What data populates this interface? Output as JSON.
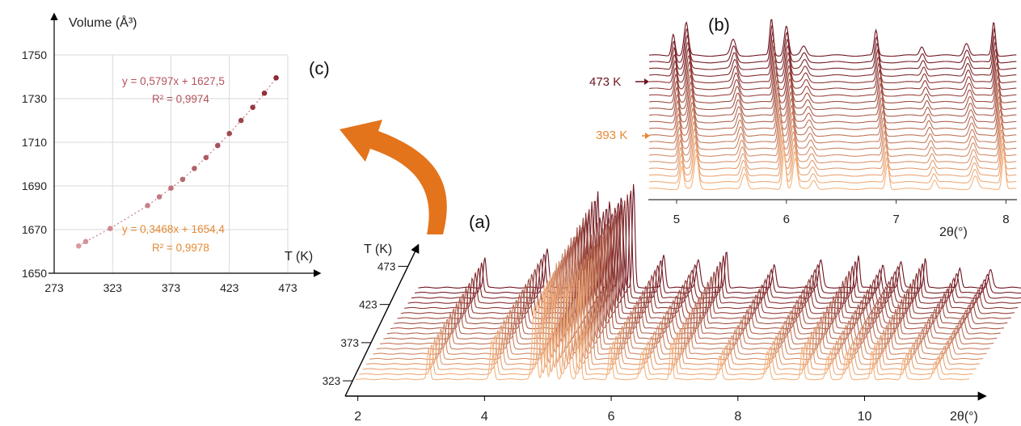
{
  "panel_labels": {
    "a": "(a)",
    "b": "(b)",
    "c": "(c)"
  },
  "colors": {
    "hot": "#6e1420",
    "cold": "#f5b47f",
    "arrow": "#e3741c",
    "fit_high": "#b3515b",
    "fit_low": "#e58a34",
    "grid": "#d9d9d9"
  },
  "chart_data": [
    {
      "id": "c",
      "type": "scatter",
      "ylabel": "Volume (Å³)",
      "xlabel": "T (K)",
      "xlim": [
        273,
        473
      ],
      "ylim": [
        1650,
        1750
      ],
      "x_ticks": [
        "273",
        "323",
        "373",
        "423",
        "473"
      ],
      "y_ticks": [
        "1650",
        "1670",
        "1690",
        "1710",
        "1730",
        "1750"
      ],
      "grid": true,
      "points": [
        [
          294,
          1662.5
        ],
        [
          300,
          1664.5
        ],
        [
          321,
          1670.5
        ],
        [
          353,
          1681
        ],
        [
          363,
          1685
        ],
        [
          373,
          1689
        ],
        [
          383,
          1693
        ],
        [
          393,
          1698
        ],
        [
          403,
          1703
        ],
        [
          413,
          1708.5
        ],
        [
          423,
          1714
        ],
        [
          433,
          1720
        ],
        [
          443,
          1726
        ],
        [
          453,
          1732.5
        ],
        [
          463,
          1739.5
        ]
      ],
      "fits": [
        {
          "equation": "y = 0,5797x + 1627,5",
          "r2": "R² = 0,9974"
        },
        {
          "equation": "y = 0,3468x + 1654,4",
          "r2": "R² = 0,9978"
        }
      ]
    },
    {
      "id": "a",
      "type": "line",
      "xlabel": "2θ(°)",
      "zlabel": "T (K)",
      "x_ticks": [
        "2",
        "4",
        "6",
        "8",
        "10"
      ],
      "z_ticks": [
        "323",
        "373",
        "423",
        "473"
      ],
      "xlim": [
        1.8,
        11.5
      ],
      "zlim": [
        303,
        483
      ],
      "series_count": 19,
      "peaks": [
        {
          "pos": 2.95,
          "h": 75
        },
        {
          "pos": 3.95,
          "h": 80
        },
        {
          "pos": 4.62,
          "h": 180
        },
        {
          "pos": 4.78,
          "h": 200
        },
        {
          "pos": 4.92,
          "h": 210
        },
        {
          "pos": 5.12,
          "h": 190
        },
        {
          "pos": 5.33,
          "h": 250
        },
        {
          "pos": 5.82,
          "h": 70
        },
        {
          "pos": 6.32,
          "h": 65
        },
        {
          "pos": 6.78,
          "h": 80
        },
        {
          "pos": 7.55,
          "h": 55
        },
        {
          "pos": 8.3,
          "h": 60
        },
        {
          "pos": 8.85,
          "h": 75
        },
        {
          "pos": 9.25,
          "h": 50
        },
        {
          "pos": 9.55,
          "h": 60
        },
        {
          "pos": 9.95,
          "h": 65
        },
        {
          "pos": 10.45,
          "h": 45
        },
        {
          "pos": 10.95,
          "h": 40
        }
      ]
    },
    {
      "id": "b",
      "type": "line",
      "xlabel": "2θ(°)",
      "x_ticks": [
        "5",
        "6",
        "7",
        "8"
      ],
      "xlim": [
        4.75,
        8.1
      ],
      "series_count": 21,
      "temperature_labels": [
        "473 K",
        "393 K"
      ],
      "peaks": [
        {
          "pos": 5.05,
          "h": 30
        },
        {
          "pos": 5.18,
          "h": 45
        },
        {
          "pos": 5.62,
          "h": 22
        },
        {
          "pos": 5.98,
          "h": 50
        },
        {
          "pos": 6.08,
          "h": 42
        },
        {
          "pos": 6.25,
          "h": 12
        },
        {
          "pos": 6.92,
          "h": 35
        },
        {
          "pos": 7.35,
          "h": 12
        },
        {
          "pos": 7.72,
          "h": 18
        },
        {
          "pos": 7.98,
          "h": 45
        }
      ]
    }
  ]
}
